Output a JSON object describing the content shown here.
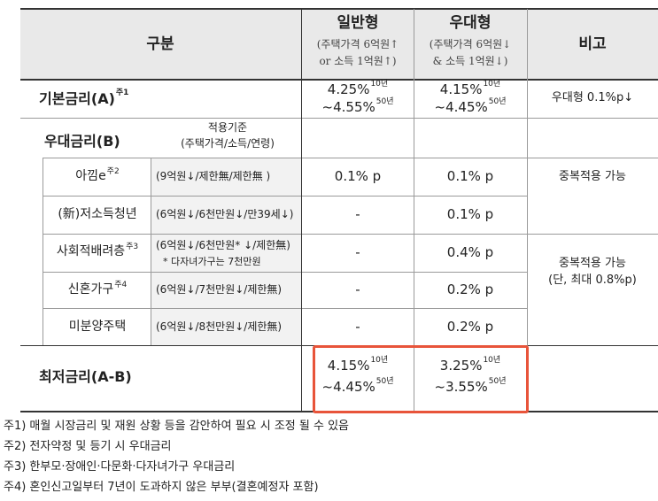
{
  "header": {
    "col_category": "구분",
    "col_general": "일반형",
    "col_general_note_l1": "(주택가격 6억원↑",
    "col_general_note_l2": "or 소득 1억원↑)",
    "col_preferred": "우대형",
    "col_preferred_note_l1": "(주택가격 6억원↓",
    "col_preferred_note_l2": "& 소득 1억원↓)",
    "col_remarks": "비고"
  },
  "base_rate": {
    "label": "기본금리(A)",
    "label_sup": "주1",
    "general_l1": "4.25%",
    "general_l1_sup": "10년",
    "general_l2": "~4.55%",
    "general_l2_sup": "50년",
    "preferred_l1": "4.15%",
    "preferred_l1_sup": "10년",
    "preferred_l2": "~4.45%",
    "preferred_l2_sup": "50년",
    "remark": "우대형 0.1%p↓"
  },
  "preferential": {
    "label": "우대금리(B)",
    "criteria_l1": "적용기준",
    "criteria_l2": "(주택가격/소득/연령)",
    "rows": [
      {
        "name": "아낌e",
        "sup": "주2",
        "criteria": "(9억원↓/제한無/제한無 )",
        "general": "0.1% p",
        "preferred": "0.1% p"
      },
      {
        "name": "(新)저소득청년",
        "sup": "",
        "criteria": "(6억원↓/6천만원↓/만39세↓)",
        "general": "-",
        "preferred": "0.1% p"
      },
      {
        "name": "사회적배려층",
        "sup": "주3",
        "criteria": "(6억원↓/6천만원* ↓/제한無)",
        "criteria_note": "*  다자녀가구는 7천만원",
        "general": "-",
        "preferred": "0.4% p"
      },
      {
        "name": "신혼가구",
        "sup": "주4",
        "criteria": "(6억원↓/7천만원↓/제한無)",
        "general": "-",
        "preferred": "0.2% p"
      },
      {
        "name": "미분양주택",
        "sup": "",
        "criteria": "(6억원↓/8천만원↓/제한無)",
        "general": "-",
        "preferred": "0.2% p"
      }
    ],
    "remark_first": "중복적용 가능",
    "remark_group_l1": "중복적용 가능",
    "remark_group_l2": "(단, 최대 0.8%p)"
  },
  "lowest_rate": {
    "label": "최저금리(A-B)",
    "general_l1": "4.15%",
    "general_l1_sup": "10년",
    "general_l2": "~4.45%",
    "general_l2_sup": "50년",
    "preferred_l1": "3.25%",
    "preferred_l1_sup": "10년",
    "preferred_l2": "~3.55%",
    "preferred_l2_sup": "50년"
  },
  "footnotes": [
    "주1) 매월 시장금리 및 재원 상황 등을 감안하여 필요 시 조정 될 수 있음",
    "주2) 전자약정 및 등기 시 우대금리",
    "주3) 한부모·장애인·다문화·다자녀가구 우대금리",
    "주4) 혼인신고일부터 7년이 도과하지 않은 부부(결혼예정자 포함)"
  ],
  "colors": {
    "header_bg": "#e9e9e9",
    "highlight": "#e8543a"
  }
}
